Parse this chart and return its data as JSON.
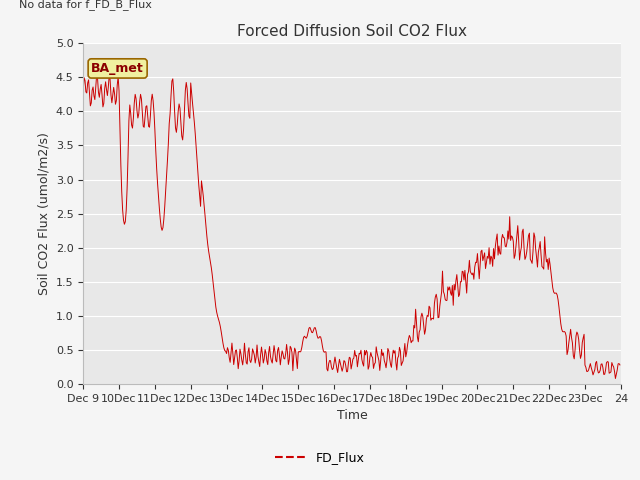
{
  "title": "Forced Diffusion Soil CO2 Flux",
  "no_data_text": "No data for f_FD_B_Flux",
  "ylabel": "Soil CO2 Flux (umol/m2/s)",
  "xlabel": "Time",
  "ylim": [
    0.0,
    5.0
  ],
  "yticks": [
    0.0,
    0.5,
    1.0,
    1.5,
    2.0,
    2.5,
    3.0,
    3.5,
    4.0,
    4.5,
    5.0
  ],
  "line_color": "#cc0000",
  "line_label": "FD_Flux",
  "ba_met_label": "BA_met",
  "fig_bg_color": "#f5f5f5",
  "plot_bg_color": "#e8e8e8",
  "grid_color": "#ffffff",
  "title_fontsize": 11,
  "axis_fontsize": 8,
  "ylabel_fontsize": 9,
  "legend_line_color": "#cc0000"
}
